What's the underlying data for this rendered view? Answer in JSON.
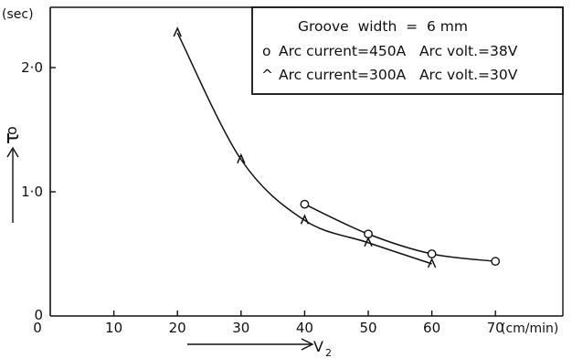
{
  "chart_data": {
    "type": "line",
    "xlabel": "V",
    "xlabel_sub": "2",
    "x_unit": "(cm/min)",
    "ylabel": "τ",
    "ylabel_sub": "o",
    "y_unit": "(sec)",
    "xlim": [
      0,
      70
    ],
    "ylim": [
      0,
      2.5
    ],
    "xticks": [
      "0",
      "10",
      "20",
      "30",
      "40",
      "50",
      "60",
      "70"
    ],
    "xtick_values": [
      0,
      10,
      20,
      30,
      40,
      50,
      60,
      70
    ],
    "yticks": [
      "0",
      "1·0",
      "2·0"
    ],
    "ytick_values": [
      0,
      1.0,
      2.0
    ],
    "grid": false,
    "legend_position": "top-right",
    "legend_title": "Groove  width  =  6 mm",
    "series": [
      {
        "name": "Arc current=450A   Arc volt.=38V",
        "marker_symbol": "o",
        "marker": "circle",
        "color": "#111111",
        "x": [
          40,
          50,
          60,
          70
        ],
        "y": [
          0.9,
          0.66,
          0.5,
          0.44
        ]
      },
      {
        "name": "Arc current=300A   Arc volt.=30V",
        "marker_symbol": "^",
        "marker": "caret",
        "color": "#111111",
        "x": [
          20,
          30,
          40,
          50,
          60
        ],
        "y": [
          2.28,
          1.26,
          0.77,
          0.59,
          0.42
        ]
      }
    ]
  }
}
